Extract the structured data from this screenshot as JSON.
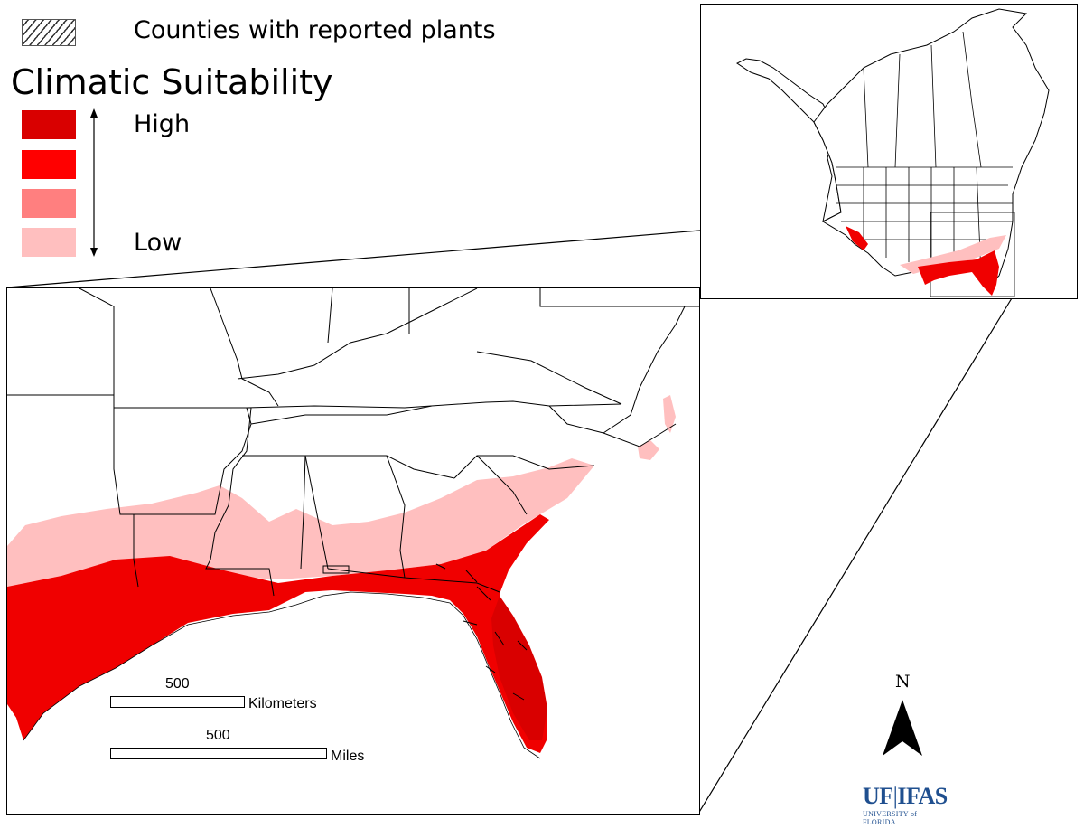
{
  "legend": {
    "hatch_label": "Counties with reported plants",
    "title": "Climatic Suitability",
    "high_label": "High",
    "low_label": "Low",
    "swatches": [
      {
        "level": "high",
        "color": "#d90000"
      },
      {
        "level": "medium-high",
        "color": "#ff0000"
      },
      {
        "level": "medium-low",
        "color": "#ff7f7f"
      },
      {
        "level": "low",
        "color": "#ffbfbf"
      }
    ]
  },
  "scale_bars": {
    "km": {
      "value": "500",
      "unit": "Kilometers"
    },
    "mi": {
      "value": "500",
      "unit": "Miles"
    }
  },
  "north_arrow": {
    "letter": "N"
  },
  "logo": {
    "main_left": "UF",
    "main_right": "IFAS",
    "sub": "UNIVERSITY of FLORIDA"
  },
  "colors": {
    "high": "#d90000",
    "medium_high": "#ff0000",
    "medium_low": "#ff7f7f",
    "low": "#ffbfbf",
    "logo_blue": "#1f4f8f"
  }
}
